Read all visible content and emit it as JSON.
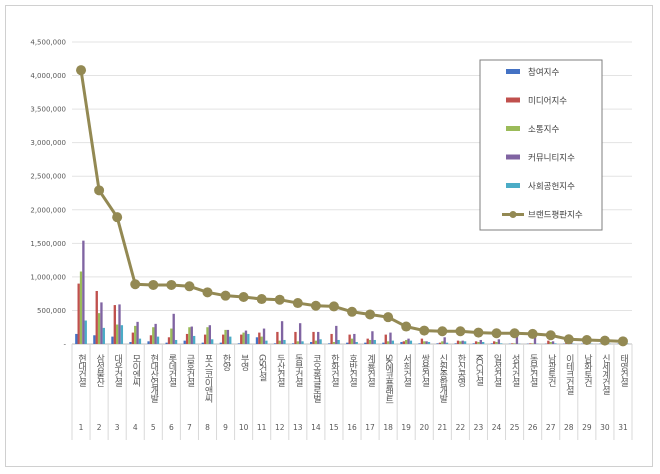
{
  "chart_data": {
    "type": "bar",
    "title": "",
    "xlabel": "",
    "ylabel": "",
    "ylim": [
      0,
      4500000
    ],
    "yticks": [
      "-",
      "500,000",
      "1,000,000",
      "1,500,000",
      "2,000,000",
      "2,500,000",
      "3,000,000",
      "3,500,000",
      "4,000,000",
      "4,500,000"
    ],
    "grid": true,
    "legend_position": "right",
    "ranks": [
      "1",
      "2",
      "3",
      "4",
      "5",
      "6",
      "7",
      "8",
      "9",
      "10",
      "11",
      "12",
      "13",
      "14",
      "15",
      "16",
      "17",
      "18",
      "19",
      "20",
      "21",
      "22",
      "23",
      "24",
      "25",
      "26",
      "27",
      "28",
      "29",
      "30",
      "31"
    ],
    "categories": [
      "현대건설",
      "삼성물산",
      "대우건설",
      "모이엔씨",
      "현대산업개발",
      "롯데건설",
      "금호건설",
      "포스코이앤씨",
      "한양",
      "부영",
      "GS건설",
      "두산건설",
      "동부건설",
      "코오롱글로벌",
      "한화건설",
      "호반건설",
      "계룡건설",
      "SK에코플랜트",
      "서희건설",
      "쌍용건설",
      "신원종합개발",
      "한신공영",
      "KCC건설",
      "일성건설",
      "성지건설",
      "동문건설",
      "남광토건",
      "이테크건설",
      "남화토건",
      "신세계건설",
      "태영건설"
    ],
    "series": [
      {
        "name": "참여지수",
        "kind": "bar",
        "color": "#4472c4",
        "values": [
          150000,
          130000,
          110000,
          30000,
          40000,
          20000,
          50000,
          20000,
          20000,
          10000,
          100000,
          10000,
          10000,
          30000,
          10000,
          20000,
          20000,
          20000,
          30000,
          10000,
          10000,
          10000,
          10000,
          10000,
          5000,
          5000,
          5000,
          5000,
          5000,
          5000,
          5000
        ]
      },
      {
        "name": "미디어지수",
        "kind": "bar",
        "color": "#c0504d",
        "values": [
          900000,
          790000,
          580000,
          170000,
          130000,
          100000,
          150000,
          140000,
          140000,
          140000,
          170000,
          180000,
          180000,
          180000,
          150000,
          140000,
          80000,
          140000,
          40000,
          80000,
          20000,
          50000,
          40000,
          40000,
          10000,
          10000,
          50000,
          20000,
          10000,
          10000,
          10000
        ]
      },
      {
        "name": "소통지수",
        "kind": "bar",
        "color": "#9bbb59",
        "values": [
          1080000,
          460000,
          290000,
          270000,
          250000,
          230000,
          250000,
          250000,
          210000,
          170000,
          110000,
          50000,
          40000,
          50000,
          30000,
          80000,
          60000,
          40000,
          60000,
          40000,
          40000,
          40000,
          30000,
          30000,
          10000,
          10000,
          30000,
          10000,
          10000,
          10000,
          10000
        ]
      },
      {
        "name": "커뮤니티지수",
        "kind": "bar",
        "color": "#8064a2",
        "values": [
          1540000,
          620000,
          590000,
          330000,
          300000,
          450000,
          260000,
          280000,
          210000,
          200000,
          230000,
          340000,
          310000,
          180000,
          270000,
          150000,
          190000,
          170000,
          80000,
          40000,
          100000,
          50000,
          60000,
          70000,
          130000,
          120000,
          40000,
          30000,
          20000,
          20000,
          10000
        ]
      },
      {
        "name": "사회공헌지수",
        "kind": "bar",
        "color": "#4bacc6",
        "values": [
          350000,
          240000,
          280000,
          80000,
          110000,
          60000,
          120000,
          70000,
          110000,
          150000,
          50000,
          60000,
          40000,
          70000,
          60000,
          30000,
          60000,
          50000,
          50000,
          30000,
          20000,
          40000,
          30000,
          10000,
          5000,
          5000,
          10000,
          5000,
          5000,
          5000,
          5000
        ]
      },
      {
        "name": "브랜드평판지수",
        "kind": "line",
        "color": "#938953",
        "values": [
          4080000,
          2290000,
          1890000,
          890000,
          880000,
          880000,
          860000,
          770000,
          720000,
          700000,
          670000,
          660000,
          610000,
          570000,
          560000,
          480000,
          440000,
          400000,
          260000,
          200000,
          190000,
          190000,
          170000,
          160000,
          160000,
          150000,
          130000,
          70000,
          60000,
          50000,
          40000
        ]
      }
    ]
  }
}
